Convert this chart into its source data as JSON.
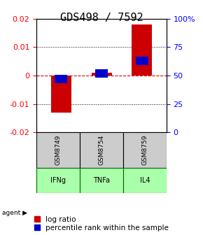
{
  "title": "GDS498 / 7592",
  "categories": [
    "GSM8749",
    "GSM8754",
    "GSM8759"
  ],
  "agents": [
    "IFNg",
    "TNFa",
    "IL4"
  ],
  "log_ratios": [
    -0.013,
    0.001,
    0.018
  ],
  "percentiles": [
    47,
    52,
    63
  ],
  "ylim_left": [
    -0.02,
    0.02
  ],
  "ylim_right": [
    0,
    100
  ],
  "yticks_left": [
    -0.02,
    -0.01,
    0,
    0.01,
    0.02
  ],
  "yticks_right": [
    0,
    25,
    50,
    75,
    100
  ],
  "ytick_labels_left": [
    "-0.02",
    "-0.01",
    "0",
    "0.01",
    "0.02"
  ],
  "ytick_labels_right": [
    "0",
    "25",
    "50",
    "75",
    "100%"
  ],
  "bar_color": "#cc0000",
  "dot_color": "#0000cc",
  "zero_line_color": "#cc0000",
  "grid_color": "#000000",
  "sample_bg_color": "#cccccc",
  "agent_bg_color": "#aaffaa",
  "agent_border_color": "#006600",
  "bar_width": 0.5,
  "title_fontsize": 11,
  "tick_fontsize": 8,
  "label_fontsize": 8,
  "legend_fontsize": 7.5
}
